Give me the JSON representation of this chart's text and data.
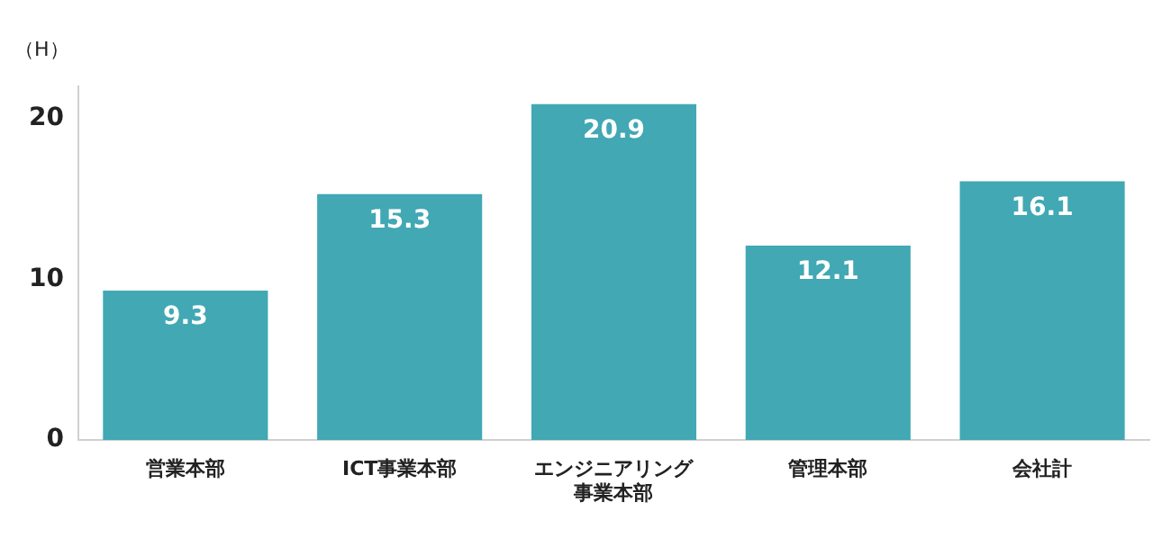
{
  "chart_data": {
    "type": "bar",
    "ylabel": "（H）",
    "categories": [
      "営業本部",
      "ICT事業本部",
      "エンジニアリング事業本部",
      "管理本部",
      "会社計"
    ],
    "values": [
      9.3,
      15.3,
      20.9,
      12.1,
      16.1
    ],
    "color": "#41a8b4",
    "ylim": [
      0,
      22
    ],
    "yticks": [
      0,
      10,
      20
    ],
    "grid": false,
    "legend": false,
    "data_labels": true
  }
}
